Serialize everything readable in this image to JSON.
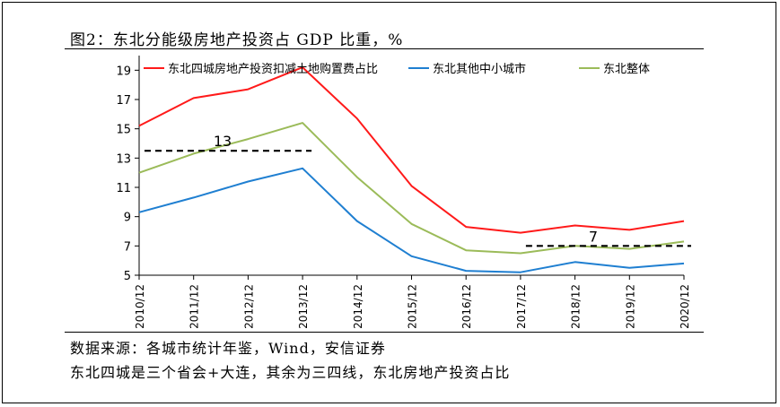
{
  "figure": {
    "title": "图2：东北分能级房地产投资占 GDP 比重，%",
    "source_line": "数据来源：各城市统计年鉴，Wind，安信证券",
    "note_line": "东北四城是三个省会+大连，其余为三四线，东北房地产投资占比"
  },
  "chart_data": {
    "type": "line",
    "title": "",
    "xlabel": "",
    "ylabel": "",
    "x": [
      "2010/12",
      "2011/12",
      "2012/12",
      "2013/12",
      "2014/12",
      "2015/12",
      "2016/12",
      "2017/12",
      "2018/12",
      "2019/12",
      "2020/12"
    ],
    "ylim": [
      5,
      20
    ],
    "yticks": [
      5,
      7,
      9,
      11,
      13,
      15,
      17,
      19
    ],
    "grid": false,
    "legend_position": "top",
    "series": [
      {
        "name": "东北四城房地产投资扣减土地购置费占比",
        "color": "#ff1a1a",
        "values": [
          15.2,
          17.1,
          17.7,
          19.2,
          15.7,
          11.1,
          8.3,
          7.9,
          8.4,
          8.1,
          8.7
        ]
      },
      {
        "name": "东北其他中小城市",
        "color": "#1f7fd1",
        "values": [
          9.3,
          10.3,
          11.4,
          12.3,
          8.7,
          6.3,
          5.3,
          5.2,
          5.9,
          5.5,
          5.8
        ]
      },
      {
        "name": "东北整体",
        "color": "#9bbb59",
        "values": [
          12.0,
          13.3,
          14.3,
          15.4,
          11.7,
          8.5,
          6.7,
          6.5,
          7.0,
          6.8,
          7.3
        ]
      }
    ],
    "annotations": [
      {
        "text": "13",
        "value": 13.5,
        "x_from": "2010/12",
        "x_to": "2013/12"
      },
      {
        "text": "7",
        "value": 7.0,
        "x_from": "2017/12",
        "x_to": "2020/12"
      }
    ]
  }
}
